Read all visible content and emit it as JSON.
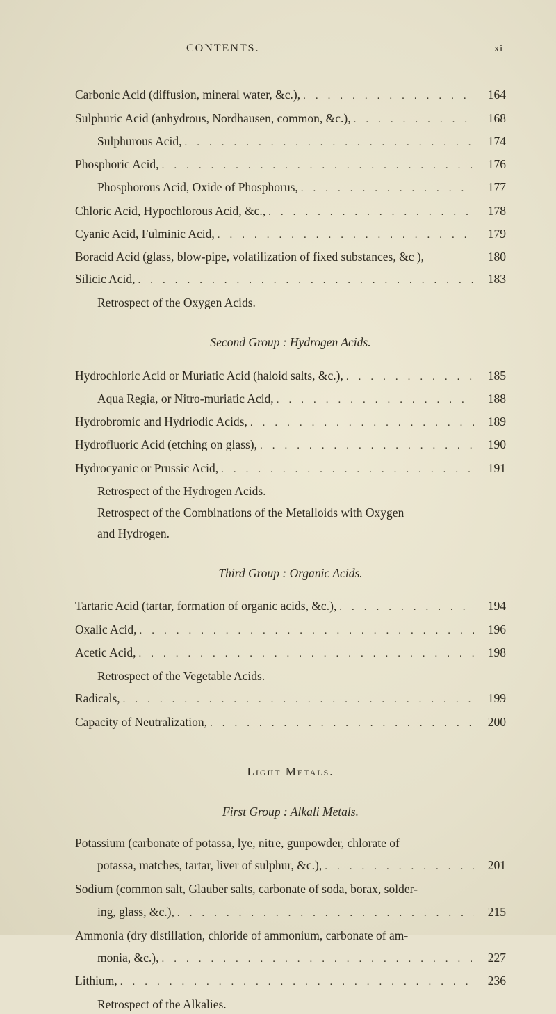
{
  "page": {
    "running_title": "CONTENTS.",
    "folio": "xi",
    "background_color": "#e8e3cf",
    "text_color": "#2e2a20",
    "font_family": "Times New Roman",
    "base_fontsize_pt": 13
  },
  "block1": {
    "rows": [
      {
        "label": "Carbonic Acid (diffusion, mineral water, &c.),",
        "page": "164",
        "indent": 0
      },
      {
        "label": "Sulphuric Acid (anhydrous, Nordhausen, common, &c.),",
        "page": "168",
        "indent": 0
      },
      {
        "label": "Sulphurous Acid,",
        "page": "174",
        "indent": 1
      },
      {
        "label": "Phosphoric Acid,",
        "page": "176",
        "indent": 0
      },
      {
        "label": "Phosphorous Acid, Oxide of Phosphorus,",
        "page": "177",
        "indent": 1
      },
      {
        "label": "Chloric Acid, Hypochlorous Acid, &c.,",
        "page": "178",
        "indent": 0
      },
      {
        "label": "Cyanic Acid, Fulminic Acid,",
        "page": "179",
        "indent": 0
      },
      {
        "label": "Boracid Acid (glass, blow-pipe, volatilization of fixed substances, &c ),",
        "page": "180",
        "indent": 0
      },
      {
        "label": "Silicic Acid,",
        "page": "183",
        "indent": 0
      }
    ],
    "retrospect": "Retrospect of the Oxygen Acids."
  },
  "group2": {
    "title": "Second Group : Hydrogen Acids.",
    "rows": [
      {
        "label": "Hydrochloric Acid or Muriatic Acid (haloid salts, &c.),",
        "page": "185",
        "indent": 0
      },
      {
        "label": "Aqua Regia, or Nitro-muriatic Acid,",
        "page": "188",
        "indent": 1
      },
      {
        "label": "Hydrobromic and Hydriodic Acids,",
        "page": "189",
        "indent": 0
      },
      {
        "label": "Hydrofluoric Acid (etching on glass),",
        "page": "190",
        "indent": 0
      },
      {
        "label": "Hydrocyanic or Prussic Acid,",
        "page": "191",
        "indent": 0
      }
    ],
    "retrospect1": "Retrospect of the Hydrogen Acids.",
    "retrospect2a": "Retrospect of the Combinations of the Metalloids with Oxygen",
    "retrospect2b": "and Hydrogen."
  },
  "group3": {
    "title": "Third Group : Organic Acids.",
    "rows1": [
      {
        "label": "Tartaric Acid (tartar, formation of organic acids, &c.),",
        "page": "194",
        "indent": 0
      },
      {
        "label": "Oxalic Acid,",
        "page": "196",
        "indent": 0
      },
      {
        "label": "Acetic Acid,",
        "page": "198",
        "indent": 0
      }
    ],
    "retrospect": "Retrospect of the Vegetable Acids.",
    "rows2": [
      {
        "label": "Radicals,",
        "page": "199",
        "indent": 0
      },
      {
        "label": "Capacity of Neutralization,",
        "page": "200",
        "indent": 0
      }
    ]
  },
  "section2": {
    "title_caps": "Light Metals."
  },
  "group4": {
    "title": "First Group : Alkali Metals.",
    "entries": [
      {
        "lead": "Potassium (carbonate of potassa, lye, nitre, gunpowder, chlorate of",
        "tail": "potassa, matches, tartar, liver of sulphur, &c.),",
        "page": "201"
      },
      {
        "lead": "Sodium (common salt, Glauber salts, carbonate of soda, borax, solder-",
        "tail": "ing, glass, &c.),",
        "page": "215"
      },
      {
        "lead": "Ammonia (dry distillation, chloride of ammonium, carbonate of am-",
        "tail": "monia, &c.),",
        "page": "227"
      }
    ],
    "lithium": {
      "label": "Lithium,",
      "page": "236"
    },
    "retrospect": "Retrospect of the Alkalies."
  },
  "leaders_char": "........................................"
}
